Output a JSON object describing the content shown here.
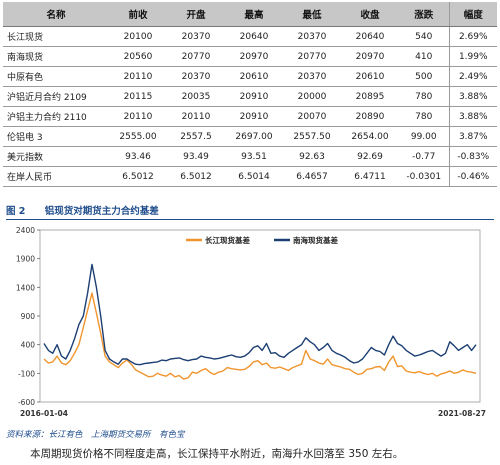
{
  "table": {
    "headers": [
      "名称",
      "前收",
      "开盘",
      "最高",
      "最低",
      "收盘",
      "涨跌",
      "幅度"
    ],
    "rows": [
      [
        "长江现货",
        "20100",
        "20370",
        "20640",
        "20370",
        "20640",
        "540",
        "2.69%"
      ],
      [
        "南海现货",
        "20560",
        "20770",
        "20970",
        "20770",
        "20970",
        "410",
        "1.99%"
      ],
      [
        "中原有色",
        "20110",
        "20370",
        "20610",
        "20370",
        "20610",
        "500",
        "2.49%"
      ],
      [
        "沪铝近月合约 2109",
        "20115",
        "20035",
        "20910",
        "20000",
        "20895",
        "780",
        "3.88%"
      ],
      [
        "沪铝主力合约 2110",
        "20110",
        "20110",
        "20910",
        "20070",
        "20890",
        "780",
        "3.88%"
      ],
      [
        "伦铝电 3",
        "2555.00",
        "2557.5",
        "2697.00",
        "2557.50",
        "2654.00",
        "99.00",
        "3.87%"
      ],
      [
        "美元指数",
        "93.46",
        "93.49",
        "93.51",
        "92.63",
        "92.69",
        "-0.77",
        "-0.83%"
      ],
      [
        "在岸人民币",
        "6.5012",
        "6.5012",
        "6.5014",
        "6.4657",
        "6.4711",
        "-0.0301",
        "-0.46%"
      ]
    ]
  },
  "figure": {
    "number": "图 2",
    "title": "铝现货对期货主力合约基差"
  },
  "chart_data": {
    "type": "line",
    "x_start_label": "2016-01-04",
    "x_end_label": "2021-08-27",
    "ylim": [
      -600,
      2400
    ],
    "yticks": [
      -600,
      -100,
      400,
      900,
      1400,
      1900,
      2400
    ],
    "series": [
      {
        "name": "长江现货基差",
        "color": "#f0952e",
        "values": [
          150,
          80,
          100,
          200,
          80,
          50,
          120,
          250,
          400,
          700,
          1000,
          1300,
          950,
          600,
          200,
          100,
          50,
          0,
          80,
          130,
          60,
          -40,
          -80,
          -120,
          -160,
          -150,
          -100,
          -130,
          -150,
          -100,
          -160,
          -140,
          -200,
          -180,
          -80,
          -100,
          -50,
          -20,
          -80,
          -120,
          -80,
          -60,
          0,
          -20,
          -30,
          -40,
          -30,
          20,
          100,
          120,
          50,
          80,
          0,
          -10,
          10,
          -20,
          -50,
          0,
          30,
          60,
          300,
          150,
          120,
          80,
          60,
          150,
          50,
          30,
          10,
          -20,
          -30,
          -80,
          -120,
          -100,
          -30,
          -20,
          10,
          20,
          -50,
          100,
          200,
          20,
          30,
          -60,
          -80,
          -90,
          -70,
          -100,
          -120,
          -100,
          -150,
          -110,
          -90,
          -60,
          -100,
          -80,
          -40,
          -70,
          -80,
          -100
        ]
      },
      {
        "name": "南海现货基差",
        "color": "#1c3f73",
        "values": [
          420,
          300,
          250,
          400,
          200,
          150,
          300,
          500,
          750,
          900,
          1300,
          1800,
          1400,
          900,
          300,
          150,
          100,
          60,
          150,
          150,
          100,
          60,
          50,
          70,
          80,
          90,
          100,
          130,
          120,
          150,
          160,
          170,
          140,
          120,
          140,
          150,
          200,
          180,
          170,
          150,
          160,
          180,
          200,
          220,
          190,
          180,
          200,
          260,
          350,
          380,
          300,
          420,
          250,
          260,
          200,
          180,
          250,
          300,
          350,
          400,
          520,
          450,
          400,
          300,
          350,
          420,
          300,
          250,
          220,
          180,
          120,
          80,
          100,
          150,
          250,
          350,
          300,
          280,
          220,
          400,
          550,
          420,
          380,
          300,
          250,
          200,
          220,
          250,
          280,
          300,
          250,
          200,
          250,
          450,
          380,
          300,
          350,
          400,
          300,
          400
        ]
      }
    ]
  },
  "footer": {
    "source": "资料来源：长江有色　上海期货交易所　有色宝",
    "summary": "本周期现货价格不同程度走高，长江保持平水附近，南海升水回落至 350 左右。"
  }
}
